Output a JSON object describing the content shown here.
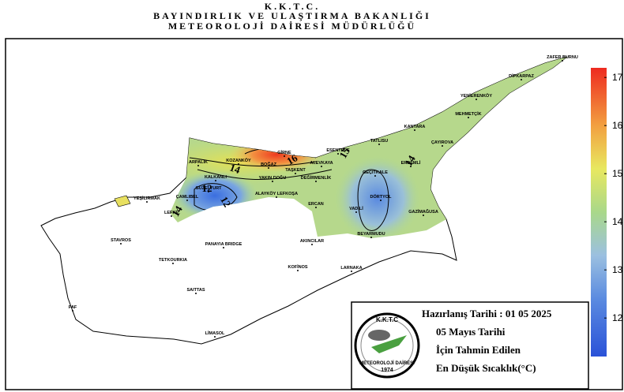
{
  "header": {
    "line1": "K.K.T.C.",
    "line2": "BAYINDIRLIK VE ULAŞTIRMA BAKANLIĞI",
    "line3": "METEOROLOJİ DAİRESİ MÜDÜRLÜĞÜ"
  },
  "places": [
    {
      "label": "ZAFER BURNU"
    },
    {
      "label": "DİPKARPAZ"
    },
    {
      "label": "YENİERENKÖY"
    },
    {
      "label": "MEHMETÇİK"
    },
    {
      "label": "KANTARA"
    },
    {
      "label": "ÇAYIROVA"
    },
    {
      "label": "TATLISU"
    },
    {
      "label": "ERDEMLİ"
    },
    {
      "label": "ESENTEPE"
    },
    {
      "label": "GİRNE"
    },
    {
      "label": "BOĞAZ"
    },
    {
      "label": "TAŞKENT"
    },
    {
      "label": "ALEVKAYA"
    },
    {
      "label": "KOZANKÖY"
    },
    {
      "label": "ARPALIK"
    },
    {
      "label": "KALKANLI"
    },
    {
      "label": "GÜZELYURT"
    },
    {
      "label": "ÇAMLIBEL"
    },
    {
      "label": "YEŞİLIRMAK"
    },
    {
      "label": "LEFKE"
    },
    {
      "label": "YAKIN DOĞU"
    },
    {
      "label": "DEĞİRMENLİK"
    },
    {
      "label": "ALAYKÖY LEFKOŞA"
    },
    {
      "label": "GEÇİTKALE"
    },
    {
      "label": "DÖRTYOL"
    },
    {
      "label": "ERCAN"
    },
    {
      "label": "VADİLİ"
    },
    {
      "label": "BEYARMUDU"
    },
    {
      "label": "GAZİMAĞUSA"
    },
    {
      "label": "AKINCILAR"
    },
    {
      "label": "STAVROS"
    },
    {
      "label": "PANAYIA BRIDGE"
    },
    {
      "label": "TETKOURKIA"
    },
    {
      "label": "KOFİNOS"
    },
    {
      "label": "LARNAKA"
    },
    {
      "label": "SAITTAS"
    },
    {
      "label": "LİMASOL"
    },
    {
      "label": "PAF"
    }
  ],
  "contour_labels": [
    {
      "label": "16"
    },
    {
      "label": "15"
    },
    {
      "label": "14"
    },
    {
      "label": "14"
    },
    {
      "label": "12"
    },
    {
      "label": "12"
    },
    {
      "label": "14"
    }
  ],
  "colorbar": {
    "lim": [
      11.2,
      17.2
    ],
    "ticks": [
      12,
      13,
      14,
      15,
      16,
      17
    ]
  },
  "legend": {
    "logo_top": "K.K.T.C",
    "logo_name": "METEOROLOJİ DAİRESİ",
    "logo_year": "1974",
    "date_line": "Hazırlanış Tarihi : 01 05 2025",
    "line2": "05 Mayıs Tarihi",
    "line3": "İçin Tahmin Edilen",
    "line4": "En Düşük Sıcaklık(°C)"
  }
}
